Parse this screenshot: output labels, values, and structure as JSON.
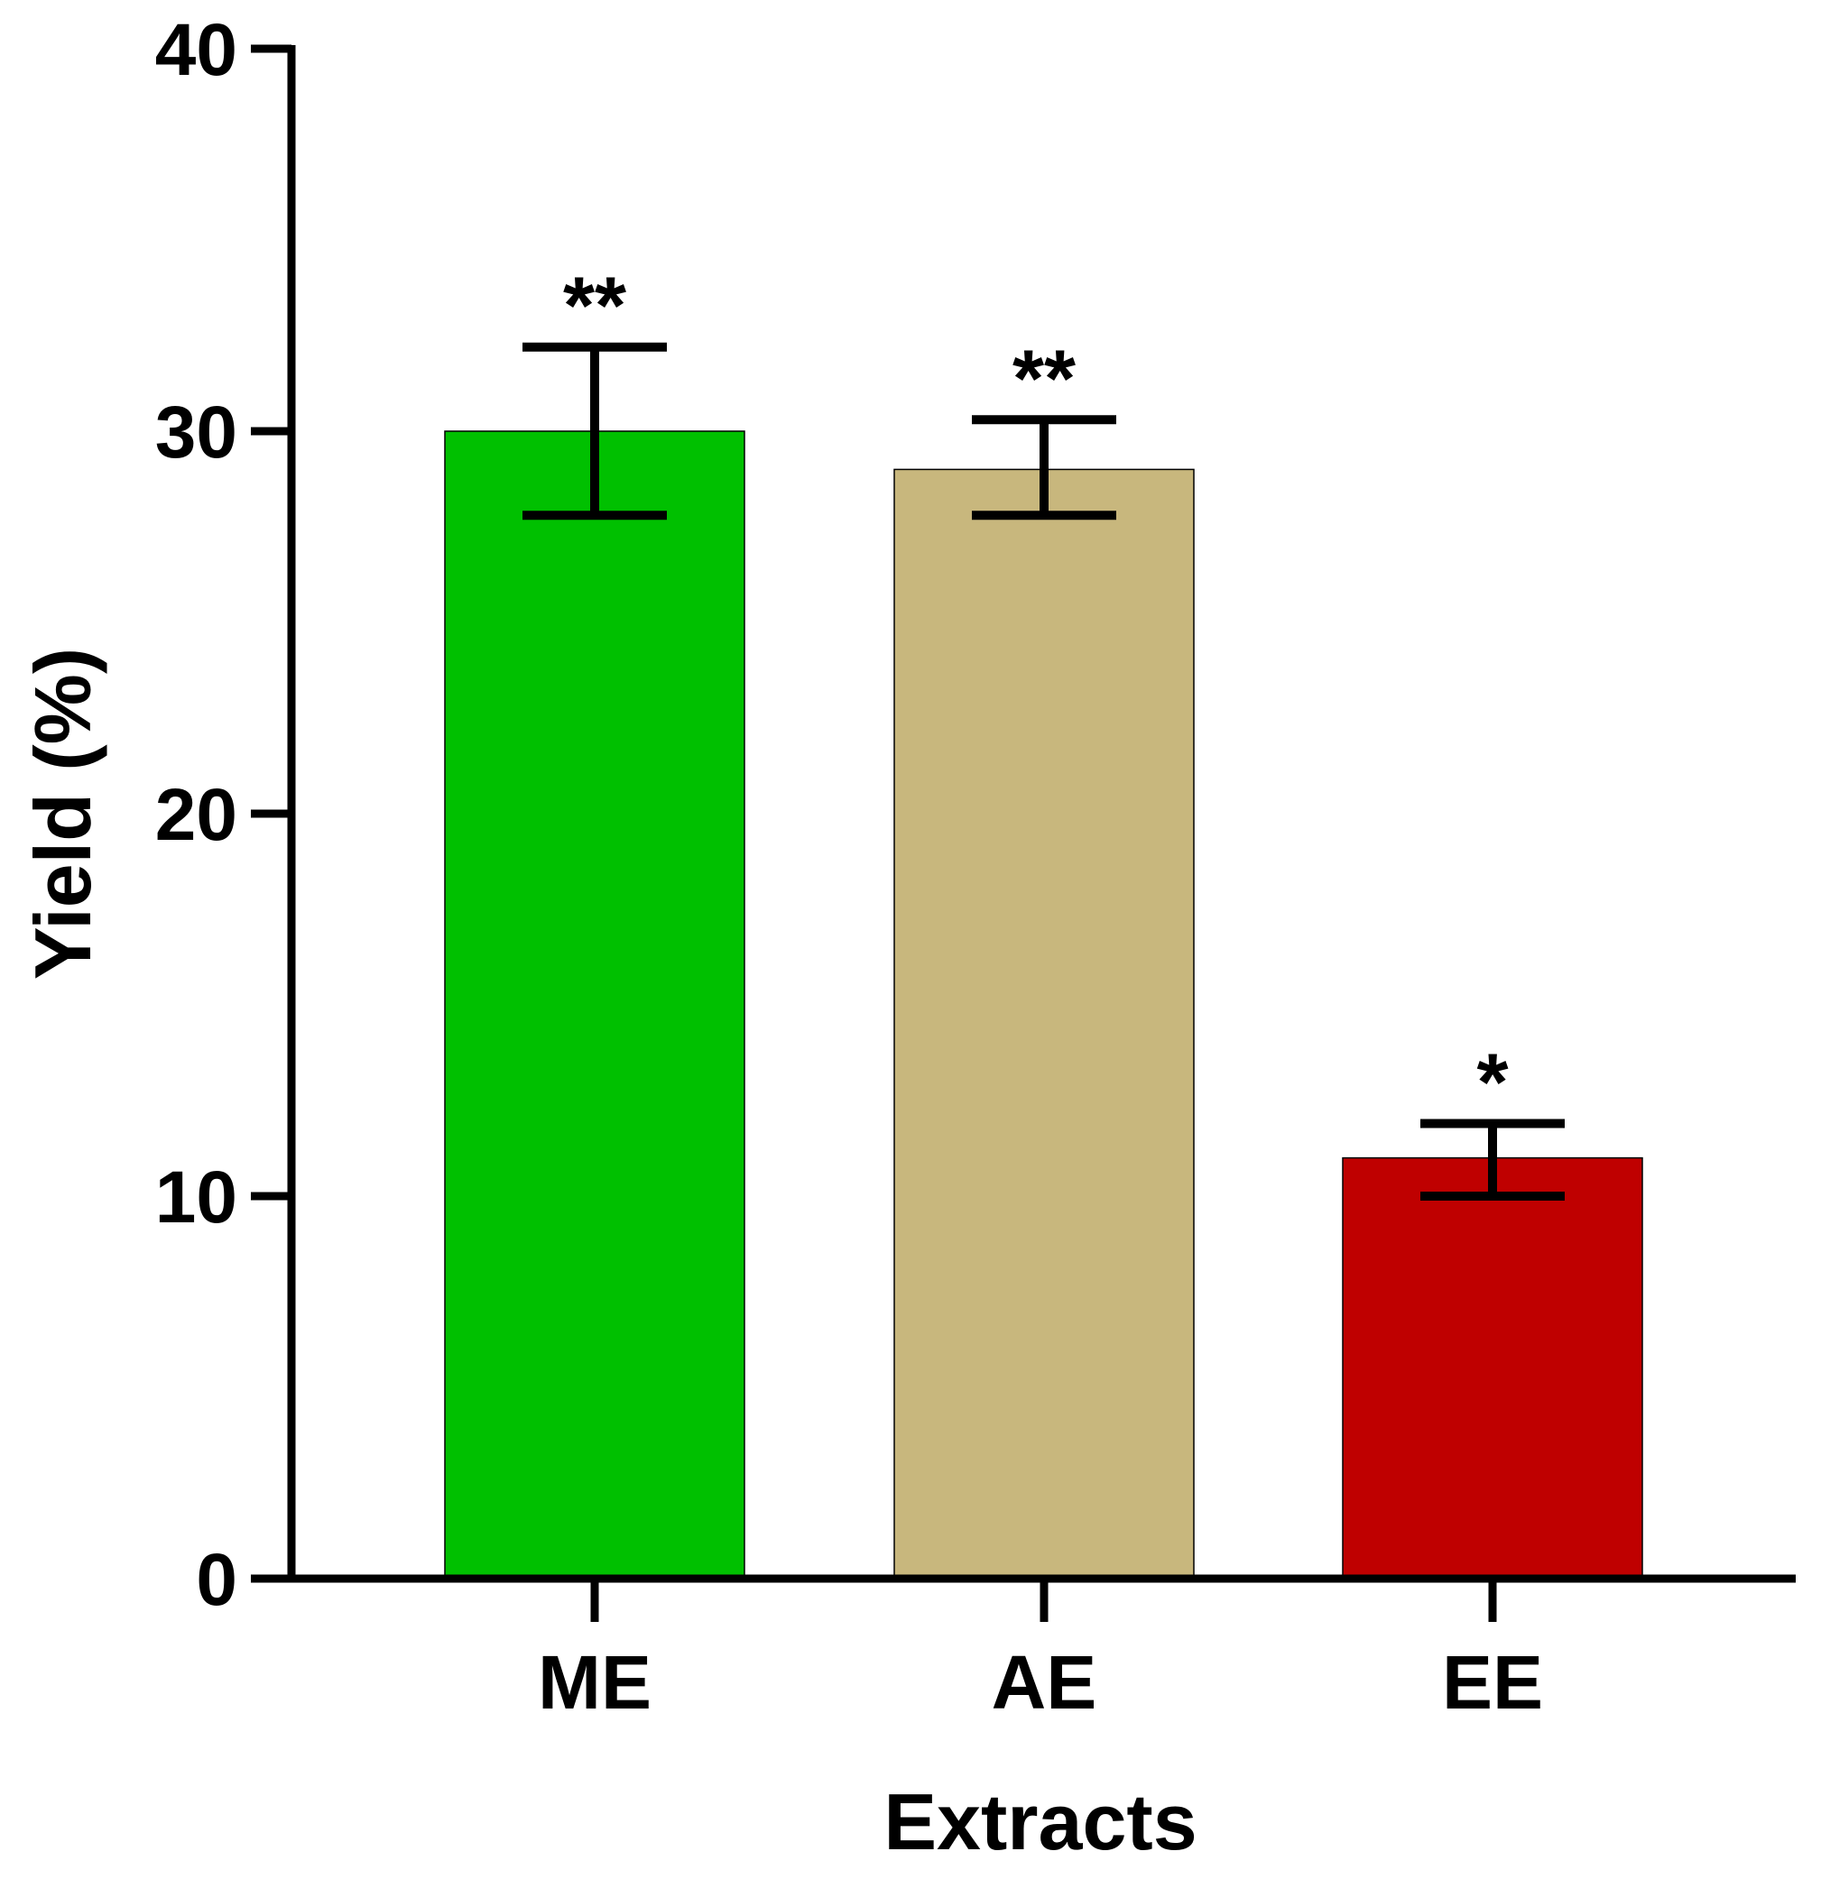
{
  "chart_data": {
    "type": "bar",
    "title": "",
    "xlabel": "Extracts",
    "ylabel": "Yield (%)",
    "ylim": [
      0,
      40
    ],
    "yticks": [
      0,
      10,
      20,
      30,
      40
    ],
    "ytick_labels": [
      "0",
      "10",
      "20",
      "30",
      "40"
    ],
    "grid": false,
    "categories": [
      "ME",
      "AE",
      "EE"
    ],
    "values": [
      30.0,
      29.0,
      11.0
    ],
    "error_upper": [
      32.2,
      30.3,
      11.9
    ],
    "error_lower": [
      27.8,
      27.8,
      10.0
    ],
    "significance": [
      "**",
      "**",
      "*"
    ],
    "colors": [
      "#00c000",
      "#c8b77d",
      "#bf0000"
    ]
  }
}
